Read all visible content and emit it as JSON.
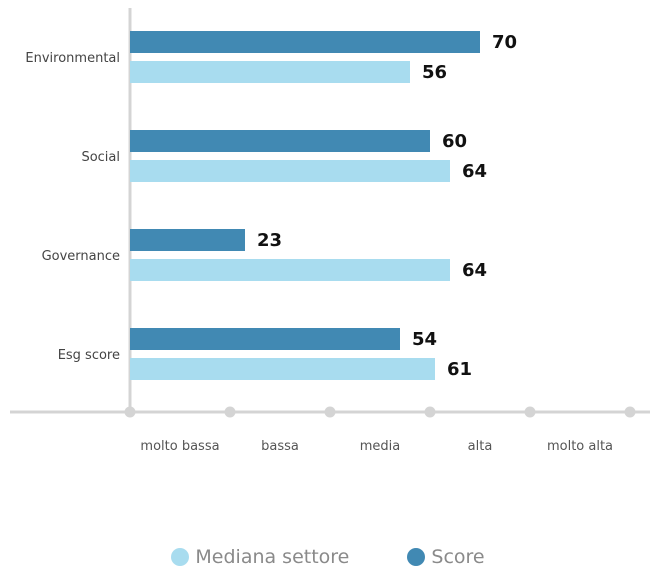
{
  "chart_data": {
    "type": "bar",
    "orientation": "horizontal",
    "categories": [
      "Environmental",
      "Social",
      "Governance",
      "Esg score"
    ],
    "series": [
      {
        "name": "Score",
        "color": "#4189b3",
        "values": [
          70,
          60,
          23,
          54
        ]
      },
      {
        "name": "Mediana settore",
        "color": "#a8dcef",
        "values": [
          56,
          64,
          64,
          61
        ]
      }
    ],
    "xlim": [
      0,
      100
    ],
    "x_tick_labels": [
      "molto bassa",
      "bassa",
      "media",
      "alta",
      "molto alta"
    ],
    "grid": false,
    "legend_position": "bottom",
    "legend_order": [
      "Mediana settore",
      "Score"
    ],
    "axis_color": "#d4d4d4"
  }
}
